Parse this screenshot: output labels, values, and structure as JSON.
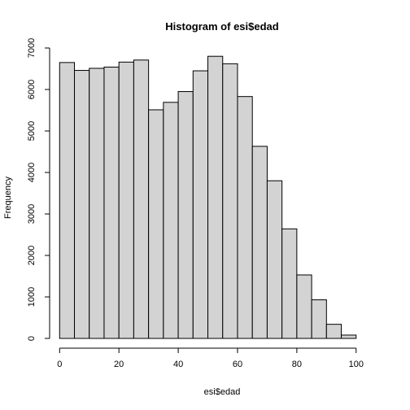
{
  "chart_data": {
    "type": "bar",
    "title": "Histogram of esi$edad",
    "xlabel": "esi$edad",
    "ylabel": "Frequency",
    "xlim": [
      -2,
      105
    ],
    "ylim": [
      0,
      7000
    ],
    "x_ticks": [
      0,
      20,
      40,
      60,
      80,
      100
    ],
    "y_ticks": [
      0,
      1000,
      2000,
      3000,
      4000,
      5000,
      6000,
      7000
    ],
    "bins": [
      {
        "start": 0,
        "end": 5,
        "value": 6650
      },
      {
        "start": 5,
        "end": 10,
        "value": 6460
      },
      {
        "start": 10,
        "end": 15,
        "value": 6510
      },
      {
        "start": 15,
        "end": 20,
        "value": 6540
      },
      {
        "start": 20,
        "end": 25,
        "value": 6660
      },
      {
        "start": 25,
        "end": 30,
        "value": 6710
      },
      {
        "start": 30,
        "end": 35,
        "value": 5510
      },
      {
        "start": 35,
        "end": 40,
        "value": 5690
      },
      {
        "start": 40,
        "end": 45,
        "value": 5950
      },
      {
        "start": 45,
        "end": 50,
        "value": 6450
      },
      {
        "start": 50,
        "end": 55,
        "value": 6800
      },
      {
        "start": 55,
        "end": 60,
        "value": 6620
      },
      {
        "start": 60,
        "end": 65,
        "value": 5830
      },
      {
        "start": 65,
        "end": 70,
        "value": 4630
      },
      {
        "start": 70,
        "end": 75,
        "value": 3800
      },
      {
        "start": 75,
        "end": 80,
        "value": 2640
      },
      {
        "start": 80,
        "end": 85,
        "value": 1530
      },
      {
        "start": 85,
        "end": 90,
        "value": 930
      },
      {
        "start": 90,
        "end": 95,
        "value": 340
      },
      {
        "start": 95,
        "end": 100,
        "value": 80
      }
    ],
    "colors": {
      "bar_fill": "#d3d3d3",
      "bar_stroke": "#000000"
    }
  }
}
